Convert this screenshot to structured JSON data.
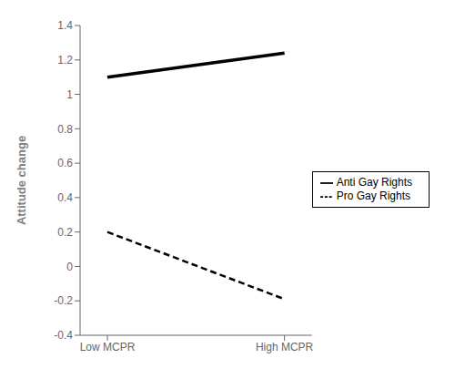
{
  "chart_data": {
    "type": "line",
    "categories": [
      "Low MCPR",
      "High MCPR"
    ],
    "series": [
      {
        "name": "Pro Gay Rights",
        "color": "#000000",
        "line_style": "dashed",
        "values": [
          0.2,
          -0.19
        ]
      },
      {
        "name": "Anti Gay Rights",
        "color": "#000000",
        "line_style": "solid",
        "values": [
          1.1,
          1.24
        ]
      }
    ],
    "ylabel": "Attitude change",
    "ylim": [
      -0.4,
      1.4
    ],
    "yticks": [
      -0.4,
      -0.2,
      0,
      0.2,
      0.4,
      0.6,
      0.8,
      1,
      1.2,
      1.4
    ],
    "grid": false,
    "legend": "right"
  }
}
